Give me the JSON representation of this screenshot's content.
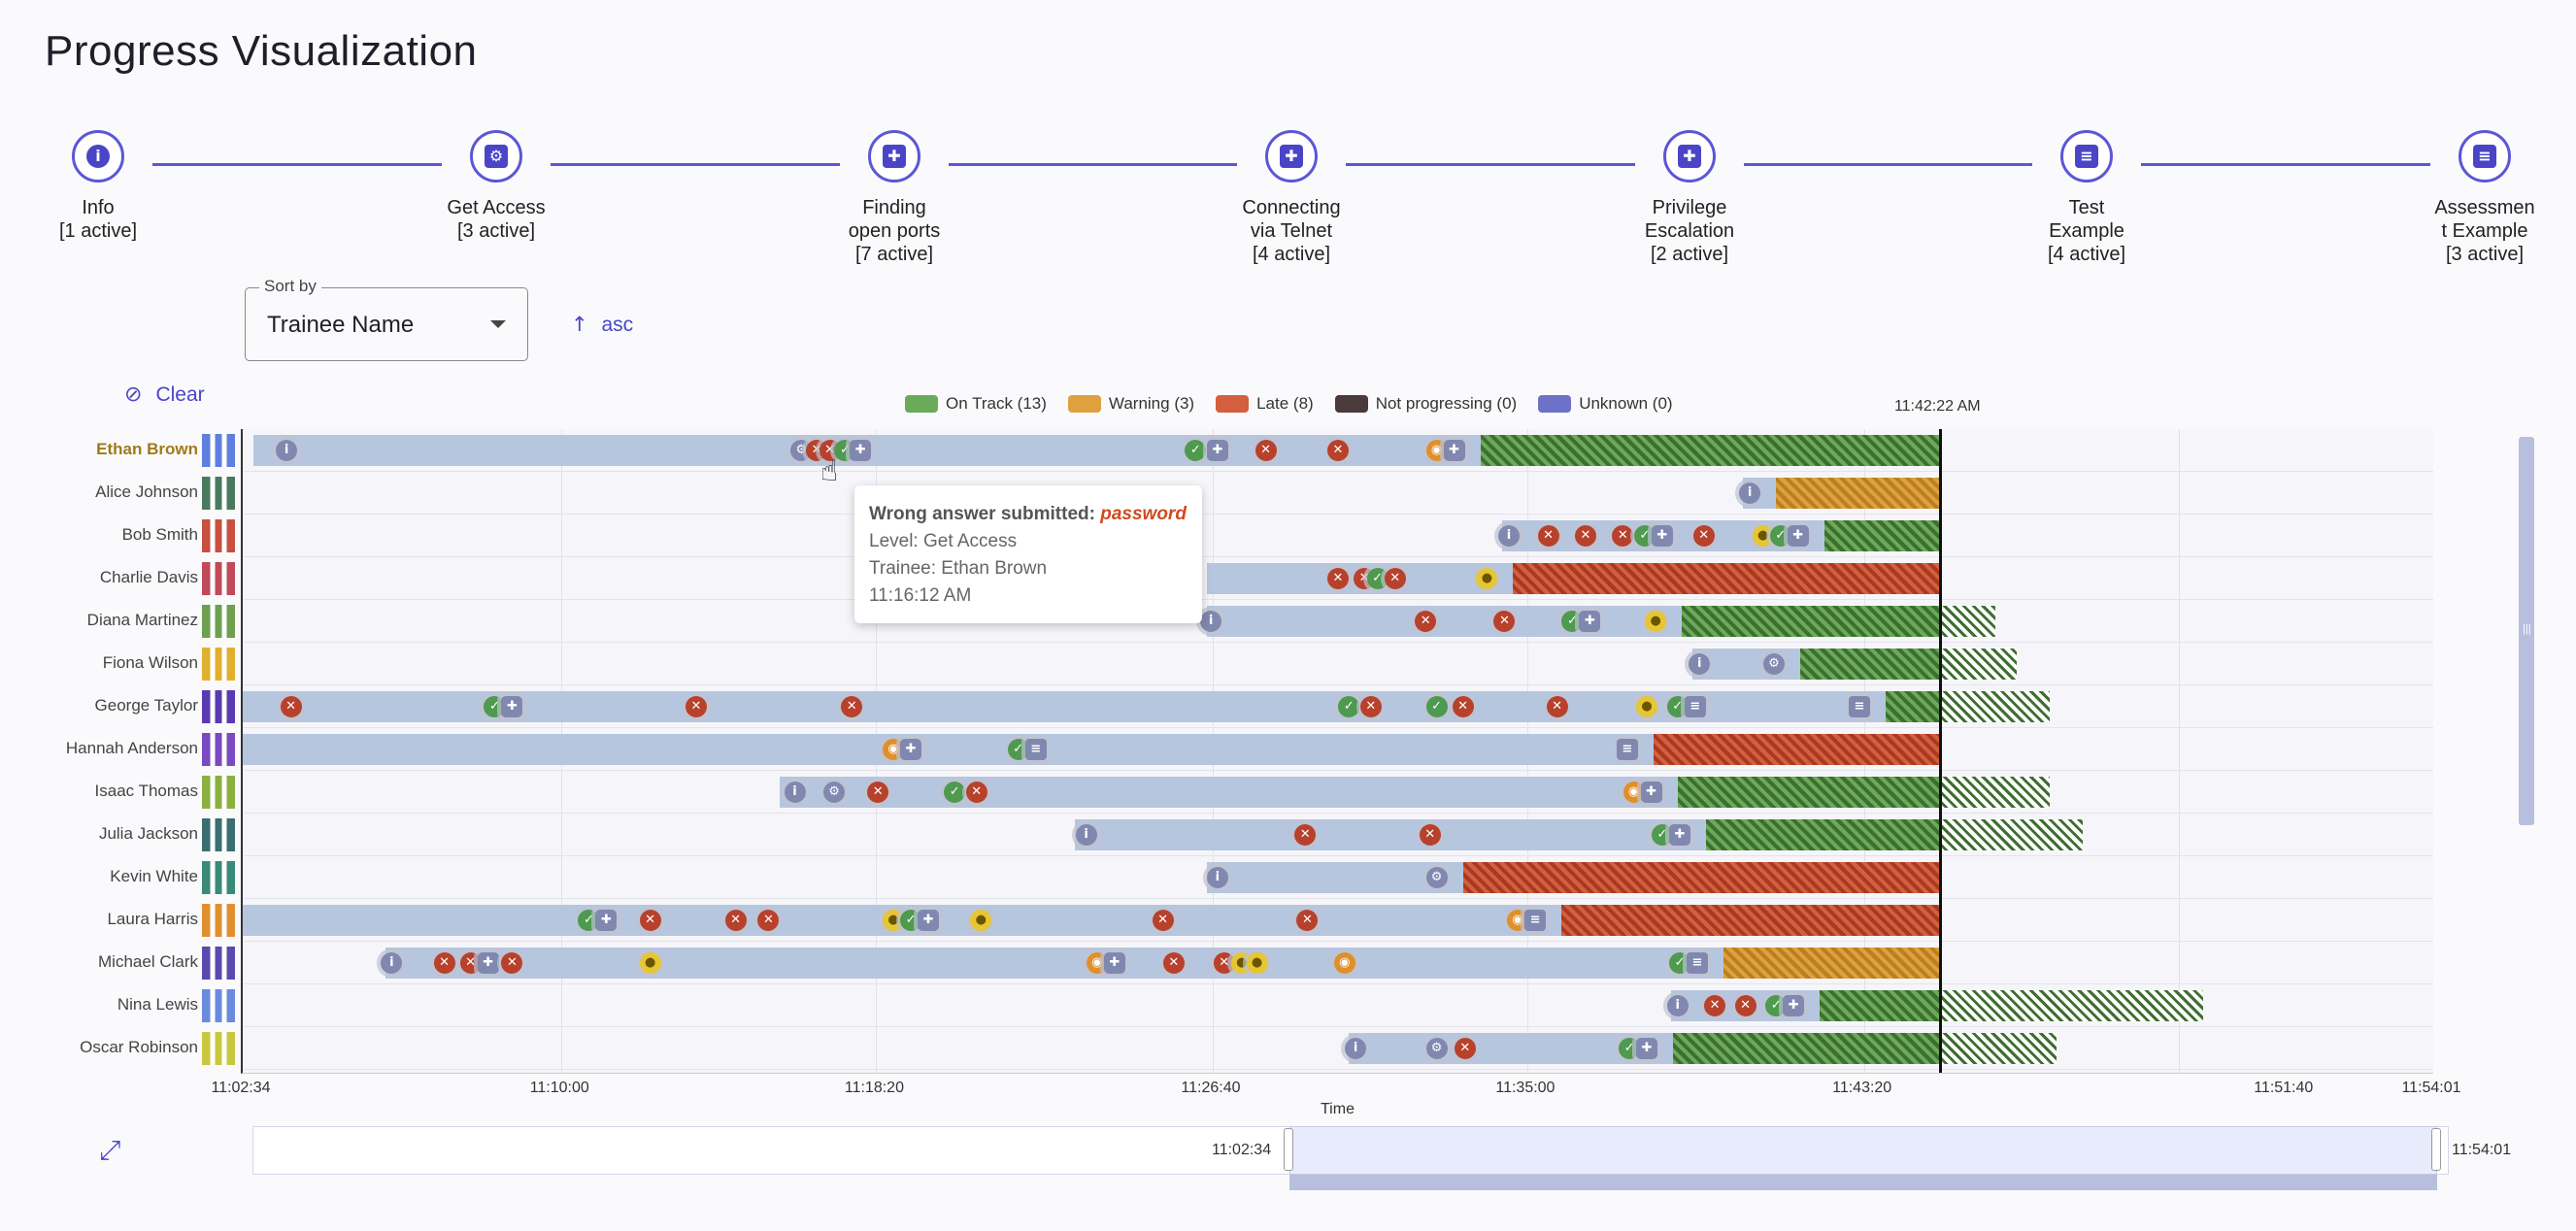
{
  "title": "Progress Visualization",
  "steps": [
    {
      "label": "Info\n[1 active]",
      "icon": "info-icon",
      "glyph": "i"
    },
    {
      "label": "Get Access\n[3 active]",
      "icon": "gear-icon",
      "glyph": "⚙"
    },
    {
      "label": "Finding\nopen ports\n[7 active]",
      "icon": "gamepad-icon",
      "glyph": "✚"
    },
    {
      "label": "Connecting\nvia Telnet\n[4 active]",
      "icon": "gamepad-icon",
      "glyph": "✚"
    },
    {
      "label": "Privilege\nEscalation\n[2 active]",
      "icon": "gamepad-icon",
      "glyph": "✚"
    },
    {
      "label": "Test\nExample\n[4 active]",
      "icon": "clipboard-icon",
      "glyph": "≡"
    },
    {
      "label": "Assessmen\nt Example\n[3 active]",
      "icon": "clipboard-icon",
      "glyph": "≡"
    }
  ],
  "sort": {
    "legend": "Sort by",
    "value": "Trainee Name",
    "direction": "asc",
    "direction_icon": "arrow-up-icon"
  },
  "clear": {
    "label": "Clear",
    "icon": "pin-off-icon"
  },
  "legend": [
    {
      "label": "On Track (13)",
      "color": "#6aaa5a"
    },
    {
      "label": "Warning (3)",
      "color": "#e0a040"
    },
    {
      "label": "Late (8)",
      "color": "#d45f40"
    },
    {
      "label": "Not progressing (0)",
      "color": "#4a3a3a"
    },
    {
      "label": "Unknown (0)",
      "color": "#6d72c8"
    }
  ],
  "timeline": {
    "now": "11:42:22 AM",
    "ticks": [
      "11:02:34",
      "11:10:00",
      "11:18:20",
      "11:26:40",
      "11:35:00",
      "11:43:20",
      "11:51:40",
      "11:54:01"
    ],
    "axis_title": "Time",
    "brush_start": "11:02:34",
    "brush_end": "11:54:01"
  },
  "trainees": [
    {
      "name": "Ethan Brown",
      "pinned": true,
      "status": "ontrack",
      "start": 10,
      "seg": 530,
      "markers": [
        [
          "m-info",
          0.02
        ],
        [
          "m-gear",
          0.255
        ],
        [
          "m-bad",
          0.262
        ],
        [
          "m-bad",
          0.268
        ],
        [
          "m-ok",
          0.275
        ],
        [
          "m-game",
          0.282
        ],
        [
          "m-ok",
          0.435
        ],
        [
          "m-game",
          0.445
        ],
        [
          "m-bad",
          0.467
        ],
        [
          "m-bad",
          0.5
        ],
        [
          "m-eye",
          0.545
        ],
        [
          "m-game",
          0.553
        ]
      ],
      "end": 0.765
    },
    {
      "name": "Alice Johnson",
      "status": "warning",
      "start": 0.685,
      "markers": [
        [
          "m-info",
          0.688
        ]
      ],
      "end": 0.775
    },
    {
      "name": "Bob Smith",
      "status": "ontrack",
      "start": 0.575,
      "markers": [
        [
          "m-info",
          0.578
        ],
        [
          "m-bad",
          0.596
        ],
        [
          "m-bad",
          0.613
        ],
        [
          "m-bad",
          0.63
        ],
        [
          "m-ok",
          0.64
        ],
        [
          "m-game",
          0.648
        ],
        [
          "m-bad",
          0.667
        ],
        [
          "m-hint",
          0.694
        ],
        [
          "m-ok",
          0.702
        ],
        [
          "m-game",
          0.71
        ]
      ],
      "end": 0.775
    },
    {
      "name": "Charlie Davis",
      "status": "late",
      "start": 0.44,
      "markers": [
        [
          "m-bad",
          0.5
        ],
        [
          "m-bad",
          0.512
        ],
        [
          "m-ok",
          0.518
        ],
        [
          "m-bad",
          0.526
        ],
        [
          "m-hint",
          0.568
        ]
      ],
      "end": 0.715
    },
    {
      "name": "Diana Martinez",
      "status": "ontrack",
      "start": 0.44,
      "markers": [
        [
          "m-info",
          0.442
        ],
        [
          "m-bad",
          0.54
        ],
        [
          "m-bad",
          0.576
        ],
        [
          "m-ok",
          0.607
        ],
        [
          "m-game",
          0.615
        ],
        [
          "m-hint",
          0.645
        ]
      ],
      "end": 0.8
    },
    {
      "name": "Fiona Wilson",
      "status": "ontrack",
      "start": 0.662,
      "markers": [
        [
          "m-info",
          0.665
        ],
        [
          "m-gear",
          0.699
        ]
      ],
      "end": 0.81
    },
    {
      "name": "George Taylor",
      "status": "ontrack",
      "start": 0.0,
      "markers": [
        [
          "m-bad",
          0.022
        ],
        [
          "m-ok",
          0.115
        ],
        [
          "m-game",
          0.123
        ],
        [
          "m-bad",
          0.207
        ],
        [
          "m-bad",
          0.278
        ],
        [
          "m-ok",
          0.505
        ],
        [
          "m-bad",
          0.515
        ],
        [
          "m-ok",
          0.545
        ],
        [
          "m-bad",
          0.557
        ],
        [
          "m-bad",
          0.6
        ],
        [
          "m-hint",
          0.641
        ],
        [
          "m-ok",
          0.655
        ],
        [
          "m-doc",
          0.663
        ],
        [
          "m-doc",
          0.738
        ]
      ],
      "end": 0.825
    },
    {
      "name": "Hannah Anderson",
      "status": "late",
      "start": 0.0,
      "markers": [
        [
          "m-eye",
          0.297
        ],
        [
          "m-game",
          0.305
        ],
        [
          "m-ok",
          0.354
        ],
        [
          "m-doc",
          0.362
        ],
        [
          "m-doc",
          0.632
        ]
      ],
      "end": 0.72
    },
    {
      "name": "Isaac Thomas",
      "status": "ontrack",
      "start": 0.245,
      "markers": [
        [
          "m-info",
          0.252
        ],
        [
          "m-gear",
          0.27
        ],
        [
          "m-bad",
          0.29
        ],
        [
          "m-ok",
          0.325
        ],
        [
          "m-bad",
          0.335
        ],
        [
          "m-eye",
          0.635
        ],
        [
          "m-game",
          0.643
        ]
      ],
      "end": 0.825
    },
    {
      "name": "Julia Jackson",
      "status": "ontrack",
      "start": 0.38,
      "markers": [
        [
          "m-info",
          0.385
        ],
        [
          "m-bad",
          0.485
        ],
        [
          "m-bad",
          0.542
        ],
        [
          "m-ok",
          0.648
        ],
        [
          "m-game",
          0.656
        ]
      ],
      "end": 0.84
    },
    {
      "name": "Kevin White",
      "status": "late",
      "start": 0.44,
      "markers": [
        [
          "m-info",
          0.445
        ],
        [
          "m-gear",
          0.545
        ]
      ],
      "end": 0.66
    },
    {
      "name": "Laura Harris",
      "status": "late",
      "start": 0.0,
      "markers": [
        [
          "m-ok",
          0.158
        ],
        [
          "m-game",
          0.166
        ],
        [
          "m-bad",
          0.186
        ],
        [
          "m-bad",
          0.225
        ],
        [
          "m-bad",
          0.24
        ],
        [
          "m-hint",
          0.297
        ],
        [
          "m-ok",
          0.305
        ],
        [
          "m-game",
          0.313
        ],
        [
          "m-hint",
          0.337
        ],
        [
          "m-bad",
          0.42
        ],
        [
          "m-bad",
          0.486
        ],
        [
          "m-eye",
          0.582
        ],
        [
          "m-doc",
          0.59
        ]
      ],
      "end": 0.68
    },
    {
      "name": "Michael Clark",
      "status": "warning",
      "start": 0.065,
      "markers": [
        [
          "m-info",
          0.068
        ],
        [
          "m-bad",
          0.092
        ],
        [
          "m-bad",
          0.104
        ],
        [
          "m-game",
          0.112
        ],
        [
          "m-bad",
          0.123
        ],
        [
          "m-hint",
          0.186
        ],
        [
          "m-eye",
          0.39
        ],
        [
          "m-game",
          0.398
        ],
        [
          "m-bad",
          0.425
        ],
        [
          "m-bad",
          0.448
        ],
        [
          "m-hint",
          0.456
        ],
        [
          "m-hint",
          0.463
        ],
        [
          "m-eye",
          0.503
        ],
        [
          "m-ok",
          0.656
        ],
        [
          "m-doc",
          0.664
        ]
      ],
      "end": 0.775
    },
    {
      "name": "Nina Lewis",
      "status": "ontrack",
      "start": 0.652,
      "markers": [
        [
          "m-info",
          0.655
        ],
        [
          "m-bad",
          0.672
        ],
        [
          "m-bad",
          0.686
        ],
        [
          "m-ok",
          0.7
        ],
        [
          "m-game",
          0.708
        ]
      ],
      "end": 0.895
    },
    {
      "name": "Oscar Robinson",
      "status": "ontrack",
      "start": 0.505,
      "markers": [
        [
          "m-info",
          0.508
        ],
        [
          "m-gear",
          0.545
        ],
        [
          "m-bad",
          0.558
        ],
        [
          "m-ok",
          0.633
        ],
        [
          "m-game",
          0.641
        ]
      ],
      "end": 0.828
    }
  ],
  "tooltip": {
    "title": "Wrong answer submitted:",
    "answer": "password",
    "level": "Level: Get Access",
    "trainee": "Trainee: Ethan Brown",
    "time": "11:16:12 AM"
  }
}
